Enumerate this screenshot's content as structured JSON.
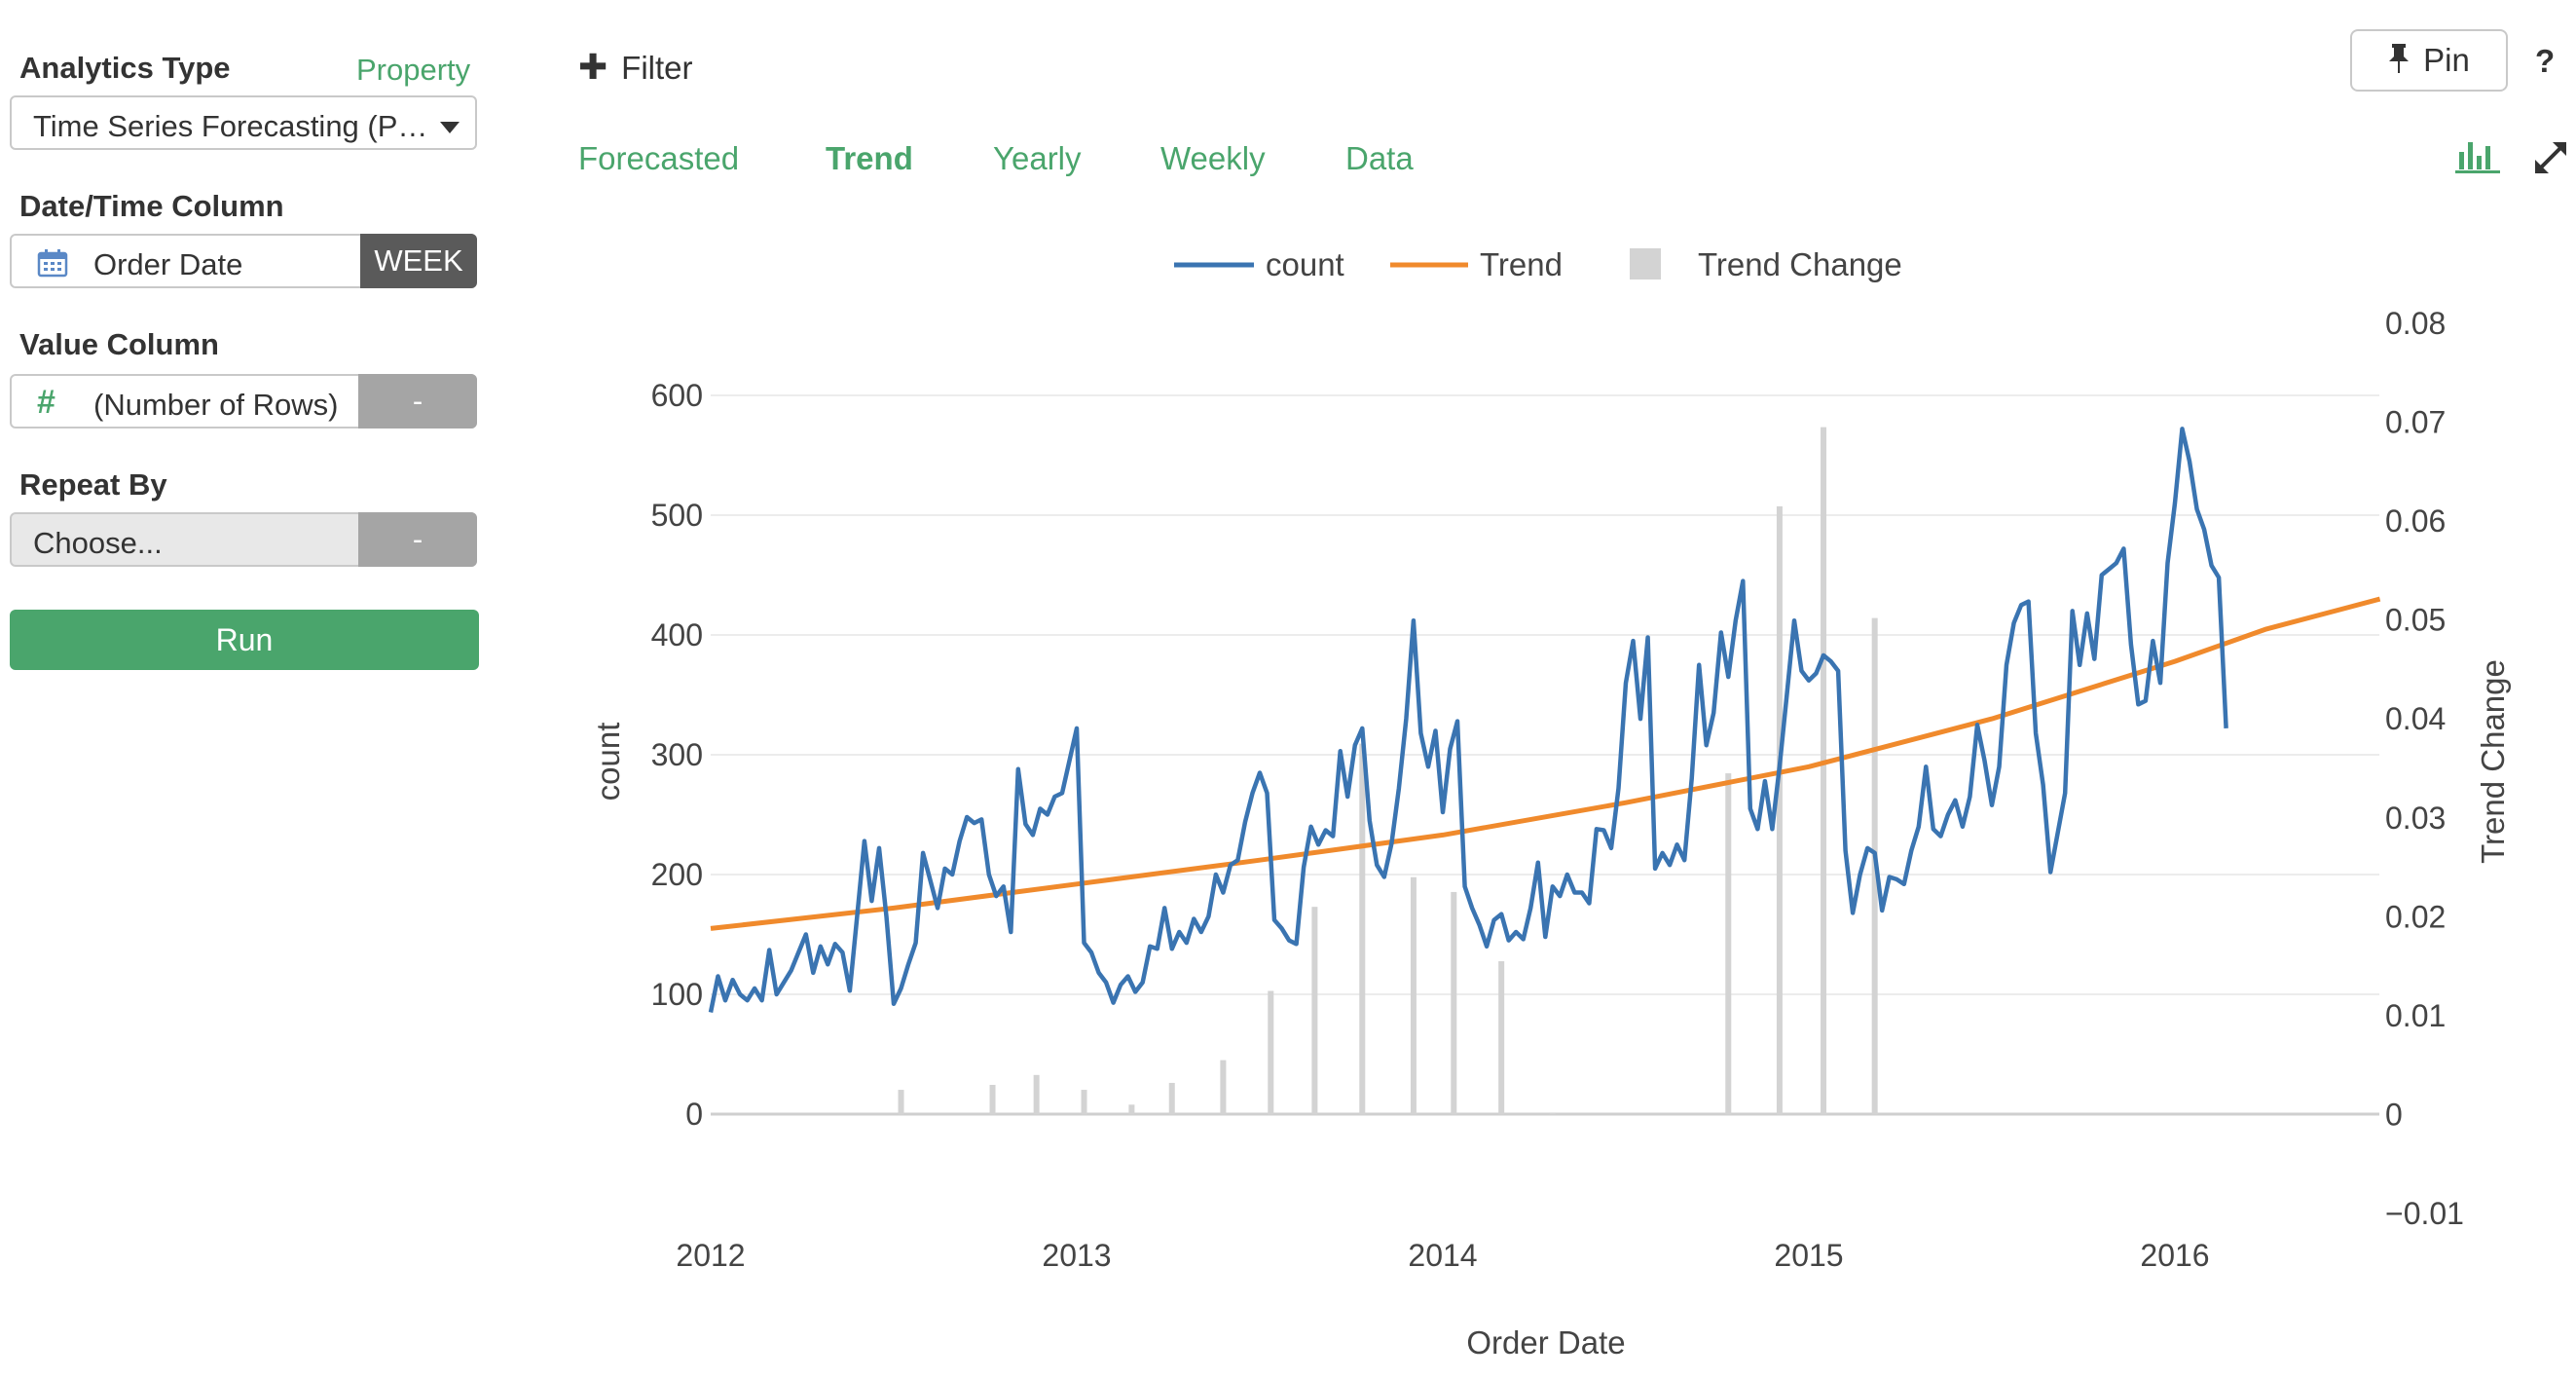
{
  "panel": {
    "analytics_type_label": "Analytics Type",
    "property_link": "Property",
    "analytics_type_value": "Time Series Forecasting (P…",
    "datetime_label": "Date/Time Column",
    "datetime_value": "Order Date",
    "datetime_unit": "WEEK",
    "value_label": "Value Column",
    "value_value": "(Number of Rows)",
    "value_button": "-",
    "repeat_label": "Repeat By",
    "repeat_placeholder": "Choose...",
    "repeat_button": "-",
    "run_label": "Run"
  },
  "toolbar": {
    "filter_label": "Filter",
    "pin_label": "Pin",
    "help_label": "?"
  },
  "tabs": [
    "Forecasted",
    "Trend",
    "Yearly",
    "Weekly",
    "Data"
  ],
  "active_tab": "Trend",
  "colors": {
    "accent": "#4aa56c",
    "count": "#3a74b1",
    "trend": "#f08a2c",
    "trend_change": "#d3d3d3"
  },
  "chart_data": {
    "type": "line",
    "xlabel": "Order Date",
    "ylabel": "count",
    "y2label": "Trend Change",
    "ylim": [
      0,
      600
    ],
    "y_ticks": [
      0,
      100,
      200,
      300,
      400,
      500,
      600
    ],
    "y2lim": [
      -0.01,
      0.08
    ],
    "y2_ticks": [
      "−0.01",
      "0",
      "0.01",
      "0.02",
      "0.03",
      "0.04",
      "0.05",
      "0.06",
      "0.07",
      "0.08"
    ],
    "x_ticks": [
      "2012",
      "2013",
      "2014",
      "2015",
      "2016"
    ],
    "grid": true,
    "legend_position": "top",
    "series": [
      {
        "name": "count",
        "kind": "line",
        "points": [
          [
            2012.0,
            85
          ],
          [
            2012.02,
            115
          ],
          [
            2012.04,
            95
          ],
          [
            2012.06,
            112
          ],
          [
            2012.08,
            100
          ],
          [
            2012.1,
            95
          ],
          [
            2012.12,
            105
          ],
          [
            2012.14,
            95
          ],
          [
            2012.16,
            137
          ],
          [
            2012.18,
            100
          ],
          [
            2012.2,
            110
          ],
          [
            2012.22,
            120
          ],
          [
            2012.24,
            135
          ],
          [
            2012.26,
            150
          ],
          [
            2012.28,
            118
          ],
          [
            2012.3,
            140
          ],
          [
            2012.32,
            125
          ],
          [
            2012.34,
            142
          ],
          [
            2012.36,
            135
          ],
          [
            2012.38,
            103
          ],
          [
            2012.4,
            165
          ],
          [
            2012.42,
            228
          ],
          [
            2012.44,
            178
          ],
          [
            2012.46,
            222
          ],
          [
            2012.48,
            165
          ],
          [
            2012.5,
            92
          ],
          [
            2012.52,
            105
          ],
          [
            2012.54,
            125
          ],
          [
            2012.56,
            143
          ],
          [
            2012.58,
            218
          ],
          [
            2012.6,
            195
          ],
          [
            2012.62,
            172
          ],
          [
            2012.64,
            205
          ],
          [
            2012.66,
            200
          ],
          [
            2012.68,
            228
          ],
          [
            2012.7,
            248
          ],
          [
            2012.72,
            243
          ],
          [
            2012.74,
            246
          ],
          [
            2012.76,
            200
          ],
          [
            2012.78,
            182
          ],
          [
            2012.8,
            190
          ],
          [
            2012.82,
            152
          ],
          [
            2012.84,
            288
          ],
          [
            2012.86,
            242
          ],
          [
            2012.88,
            233
          ],
          [
            2012.9,
            255
          ],
          [
            2012.92,
            250
          ],
          [
            2012.94,
            265
          ],
          [
            2012.96,
            268
          ],
          [
            2012.98,
            295
          ],
          [
            2013.0,
            322
          ],
          [
            2013.02,
            143
          ],
          [
            2013.04,
            135
          ],
          [
            2013.06,
            118
          ],
          [
            2013.08,
            110
          ],
          [
            2013.1,
            93
          ],
          [
            2013.12,
            108
          ],
          [
            2013.14,
            115
          ],
          [
            2013.16,
            102
          ],
          [
            2013.18,
            110
          ],
          [
            2013.2,
            140
          ],
          [
            2013.22,
            138
          ],
          [
            2013.24,
            172
          ],
          [
            2013.26,
            138
          ],
          [
            2013.28,
            152
          ],
          [
            2013.3,
            143
          ],
          [
            2013.32,
            163
          ],
          [
            2013.34,
            152
          ],
          [
            2013.36,
            165
          ],
          [
            2013.38,
            200
          ],
          [
            2013.4,
            185
          ],
          [
            2013.42,
            208
          ],
          [
            2013.44,
            212
          ],
          [
            2013.46,
            244
          ],
          [
            2013.48,
            268
          ],
          [
            2013.5,
            285
          ],
          [
            2013.52,
            268
          ],
          [
            2013.54,
            162
          ],
          [
            2013.56,
            155
          ],
          [
            2013.58,
            145
          ],
          [
            2013.6,
            142
          ],
          [
            2013.62,
            206
          ],
          [
            2013.64,
            240
          ],
          [
            2013.66,
            225
          ],
          [
            2013.68,
            237
          ],
          [
            2013.7,
            232
          ],
          [
            2013.72,
            303
          ],
          [
            2013.74,
            265
          ],
          [
            2013.76,
            308
          ],
          [
            2013.78,
            322
          ],
          [
            2013.8,
            245
          ],
          [
            2013.82,
            208
          ],
          [
            2013.84,
            198
          ],
          [
            2013.86,
            226
          ],
          [
            2013.88,
            272
          ],
          [
            2013.9,
            330
          ],
          [
            2013.92,
            412
          ],
          [
            2013.94,
            318
          ],
          [
            2013.96,
            290
          ],
          [
            2013.98,
            320
          ],
          [
            2014.0,
            252
          ],
          [
            2014.02,
            305
          ],
          [
            2014.04,
            328
          ],
          [
            2014.06,
            190
          ],
          [
            2014.08,
            172
          ],
          [
            2014.1,
            158
          ],
          [
            2014.12,
            140
          ],
          [
            2014.14,
            162
          ],
          [
            2014.16,
            167
          ],
          [
            2014.18,
            145
          ],
          [
            2014.2,
            152
          ],
          [
            2014.22,
            146
          ],
          [
            2014.24,
            172
          ],
          [
            2014.26,
            210
          ],
          [
            2014.28,
            148
          ],
          [
            2014.3,
            190
          ],
          [
            2014.32,
            182
          ],
          [
            2014.34,
            200
          ],
          [
            2014.36,
            185
          ],
          [
            2014.38,
            185
          ],
          [
            2014.4,
            176
          ],
          [
            2014.42,
            238
          ],
          [
            2014.44,
            237
          ],
          [
            2014.46,
            222
          ],
          [
            2014.48,
            272
          ],
          [
            2014.5,
            360
          ],
          [
            2014.52,
            395
          ],
          [
            2014.54,
            330
          ],
          [
            2014.56,
            398
          ],
          [
            2014.58,
            205
          ],
          [
            2014.6,
            218
          ],
          [
            2014.62,
            208
          ],
          [
            2014.64,
            225
          ],
          [
            2014.66,
            212
          ],
          [
            2014.68,
            280
          ],
          [
            2014.7,
            375
          ],
          [
            2014.72,
            308
          ],
          [
            2014.74,
            335
          ],
          [
            2014.76,
            402
          ],
          [
            2014.78,
            365
          ],
          [
            2014.8,
            412
          ],
          [
            2014.82,
            445
          ],
          [
            2014.84,
            255
          ],
          [
            2014.86,
            238
          ],
          [
            2014.88,
            278
          ],
          [
            2014.9,
            238
          ],
          [
            2014.92,
            290
          ],
          [
            2014.94,
            350
          ],
          [
            2014.96,
            412
          ],
          [
            2014.98,
            370
          ],
          [
            2015.0,
            362
          ],
          [
            2015.02,
            368
          ],
          [
            2015.04,
            383
          ],
          [
            2015.06,
            378
          ],
          [
            2015.08,
            370
          ],
          [
            2015.1,
            220
          ],
          [
            2015.12,
            168
          ],
          [
            2015.14,
            200
          ],
          [
            2015.16,
            222
          ],
          [
            2015.18,
            218
          ],
          [
            2015.2,
            170
          ],
          [
            2015.22,
            198
          ],
          [
            2015.24,
            196
          ],
          [
            2015.26,
            192
          ],
          [
            2015.28,
            220
          ],
          [
            2015.3,
            240
          ],
          [
            2015.32,
            290
          ],
          [
            2015.34,
            238
          ],
          [
            2015.36,
            232
          ],
          [
            2015.38,
            250
          ],
          [
            2015.4,
            262
          ],
          [
            2015.42,
            240
          ],
          [
            2015.44,
            265
          ],
          [
            2015.46,
            325
          ],
          [
            2015.48,
            295
          ],
          [
            2015.5,
            258
          ],
          [
            2015.52,
            290
          ],
          [
            2015.54,
            375
          ],
          [
            2015.56,
            410
          ],
          [
            2015.58,
            425
          ],
          [
            2015.6,
            428
          ],
          [
            2015.62,
            318
          ],
          [
            2015.64,
            275
          ],
          [
            2015.66,
            202
          ],
          [
            2015.68,
            235
          ],
          [
            2015.7,
            268
          ],
          [
            2015.72,
            420
          ],
          [
            2015.74,
            375
          ],
          [
            2015.76,
            418
          ],
          [
            2015.78,
            380
          ],
          [
            2015.8,
            450
          ],
          [
            2015.82,
            455
          ],
          [
            2015.84,
            460
          ],
          [
            2015.86,
            472
          ],
          [
            2015.88,
            392
          ],
          [
            2015.9,
            342
          ],
          [
            2015.92,
            345
          ],
          [
            2015.94,
            395
          ],
          [
            2015.96,
            360
          ],
          [
            2015.98,
            460
          ],
          [
            2016.0,
            510
          ],
          [
            2016.02,
            572
          ],
          [
            2016.04,
            545
          ],
          [
            2016.06,
            505
          ],
          [
            2016.08,
            488
          ],
          [
            2016.1,
            458
          ],
          [
            2016.12,
            448
          ],
          [
            2016.14,
            322
          ]
        ]
      },
      {
        "name": "Trend",
        "kind": "line",
        "points": [
          [
            2012.0,
            155
          ],
          [
            2012.5,
            172
          ],
          [
            2013.0,
            192
          ],
          [
            2013.5,
            212
          ],
          [
            2014.0,
            233
          ],
          [
            2014.5,
            260
          ],
          [
            2015.0,
            290
          ],
          [
            2015.5,
            330
          ],
          [
            2016.0,
            378
          ],
          [
            2016.25,
            405
          ],
          [
            2016.56,
            430
          ]
        ]
      },
      {
        "name": "Trend Change",
        "kind": "bar",
        "axis": "y2",
        "points": [
          [
            2012.52,
            0.0025
          ],
          [
            2012.77,
            0.003
          ],
          [
            2012.89,
            0.004
          ],
          [
            2013.02,
            0.0025
          ],
          [
            2013.15,
            0.001
          ],
          [
            2013.26,
            0.0032
          ],
          [
            2013.4,
            0.0055
          ],
          [
            2013.53,
            0.0125
          ],
          [
            2013.65,
            0.021
          ],
          [
            2013.78,
            0.0375
          ],
          [
            2013.92,
            0.024
          ],
          [
            2014.03,
            0.0225
          ],
          [
            2014.16,
            0.0155
          ],
          [
            2014.3,
            0.0002
          ],
          [
            2014.78,
            0.0345
          ],
          [
            2014.92,
            0.0615
          ],
          [
            2015.04,
            0.0695
          ],
          [
            2015.18,
            0.0502
          ]
        ]
      }
    ]
  }
}
